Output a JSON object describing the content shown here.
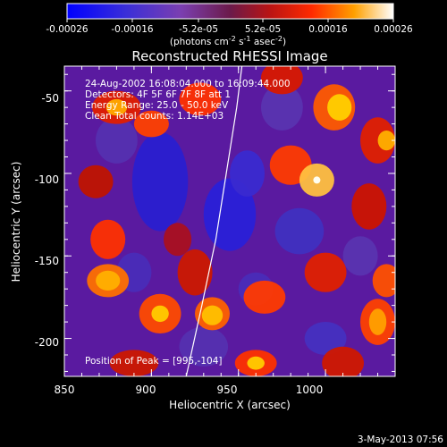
{
  "colorbar": {
    "ticks": [
      "-0.00026",
      "-0.00016",
      "-5.2e-05",
      "5.2e-05",
      "0.00016",
      "0.00026"
    ],
    "units_main": "(photons cm",
    "units_exp1": "-2",
    "units_mid": " s",
    "units_exp2": "-1",
    "units_end": " asec",
    "units_exp3": "-2",
    "units_close": ")"
  },
  "chart_data": {
    "type": "heatmap",
    "title": "Reconstructed RHESSI Image",
    "xlabel": "Heliocentric X (arcsec)",
    "ylabel": "Heliocentric Y (arcsec)",
    "xlim": [
      850,
      1040
    ],
    "ylim": [
      -223,
      -35
    ],
    "x_ticks": [
      "850",
      "900",
      "950",
      "1000"
    ],
    "x_tick_values": [
      850,
      900,
      950,
      1000
    ],
    "y_ticks": [
      "-50",
      "-100",
      "-150",
      "-200"
    ],
    "y_tick_values": [
      -50,
      -100,
      -150,
      -200
    ],
    "zlim": [
      -0.00026,
      0.00026
    ],
    "annotations": [
      "24-Aug-2002 16:08:04.000 to 16:09:44.000",
      "Detectors: 4F 5F 6F 7F 8F  att 1",
      "Energy Range: 25.0 - 50.0 keV",
      "Clean    Total counts: 1.14E+03"
    ],
    "peak_label": "Position of Peak = [995,-104]",
    "peak": [
      995,
      -104
    ],
    "limb_points": [
      [
        920,
        -223
      ],
      [
        929,
        -180
      ],
      [
        937,
        -140
      ],
      [
        943,
        -100
      ],
      [
        949,
        -60
      ],
      [
        952,
        -35
      ]
    ]
  },
  "footer": {
    "date": "3-May-2013 07:56"
  }
}
